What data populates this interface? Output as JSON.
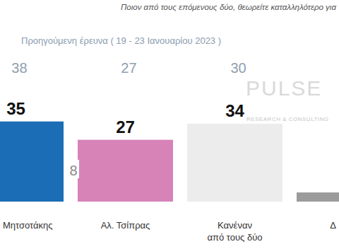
{
  "chart_data": {
    "type": "bar",
    "title": "Ποιον από τους επόμενους δύο, θεωρείτε καταλληλότερο για",
    "subtitle": "Προηγούμενη έρευνα ( 19 - 23 Ιανουαρίου 2023 )",
    "categories": [
      "Μητσοτάκης",
      "Αλ. Τσίπρας",
      "Κανέναν\nαπό τους δύο",
      "Δ"
    ],
    "values": [
      35,
      27,
      34,
      4
    ],
    "value_labels": [
      "35",
      "27",
      "34",
      null
    ],
    "previous_values": [
      38,
      27,
      30,
      null
    ],
    "colors": [
      "#1b6db5",
      "#d783b8",
      "#ececec",
      "#9b9b9b"
    ],
    "data_labels": true,
    "tick_labels": false,
    "annotations": [
      "8",
      "PULSE",
      "RESEARCH & CONSULTING"
    ]
  }
}
